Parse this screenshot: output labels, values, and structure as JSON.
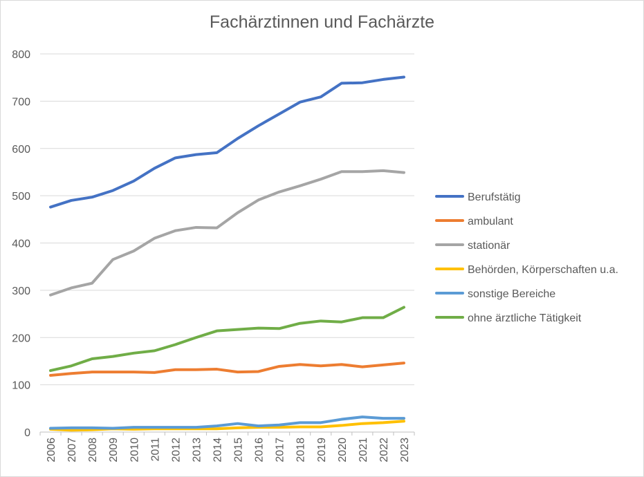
{
  "chart_data": {
    "type": "line",
    "title": "Fachärztinnen und Fachärzte",
    "xlabel": "",
    "ylabel": "",
    "ylim": [
      0,
      800
    ],
    "yticks": [
      0,
      100,
      200,
      300,
      400,
      500,
      600,
      700,
      800
    ],
    "grid": true,
    "legend_position": "right",
    "categories": [
      "2006",
      "2007",
      "2008",
      "2009",
      "2010",
      "2011",
      "2012",
      "2013",
      "2014",
      "2015",
      "2016",
      "2017",
      "2018",
      "2019",
      "2020",
      "2021",
      "2022",
      "2023"
    ],
    "series": [
      {
        "name": "Berufstätig",
        "color": "#4472C4",
        "values": [
          476,
          490,
          497,
          511,
          531,
          558,
          580,
          587,
          591,
          621,
          648,
          673,
          698,
          709,
          738,
          739,
          746,
          751
        ]
      },
      {
        "name": "ambulant",
        "color": "#ED7D31",
        "values": [
          120,
          124,
          127,
          127,
          127,
          126,
          132,
          132,
          133,
          127,
          128,
          139,
          143,
          140,
          143,
          138,
          142,
          146
        ]
      },
      {
        "name": "stationär",
        "color": "#A5A5A5",
        "values": [
          290,
          305,
          315,
          365,
          383,
          410,
          426,
          433,
          432,
          464,
          491,
          508,
          521,
          535,
          551,
          551,
          553,
          549
        ]
      },
      {
        "name": "Behörden, Körperschaften u.a.",
        "color": "#FFC000",
        "values": [
          6,
          4,
          5,
          7,
          6,
          7,
          7,
          7,
          7,
          9,
          10,
          10,
          11,
          11,
          14,
          18,
          20,
          23
        ]
      },
      {
        "name": "sonstige Bereiche",
        "color": "#5B9BD5",
        "values": [
          8,
          9,
          9,
          8,
          10,
          10,
          10,
          10,
          13,
          18,
          13,
          15,
          20,
          20,
          27,
          32,
          29,
          29
        ]
      },
      {
        "name": "ohne ärztliche Tätigkeit",
        "color": "#70AD47",
        "values": [
          130,
          140,
          155,
          160,
          167,
          172,
          185,
          200,
          214,
          217,
          220,
          219,
          230,
          235,
          233,
          242,
          242,
          264
        ]
      }
    ]
  }
}
